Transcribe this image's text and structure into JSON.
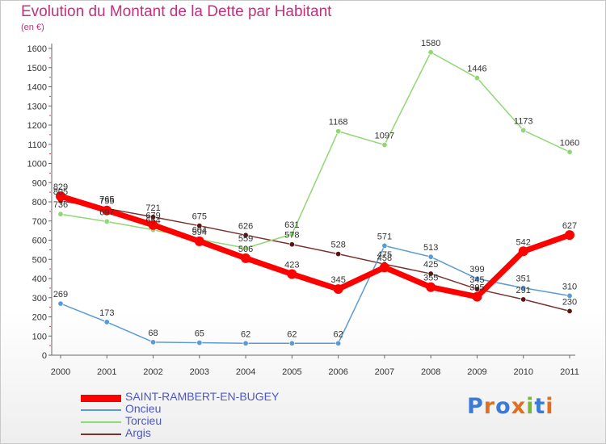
{
  "header": {
    "title": "Evolution du Montant de la Dette par Habitant",
    "unit": "(en €)"
  },
  "logo": {
    "text": "Proxiti"
  },
  "chart_data": {
    "type": "line",
    "title": "Evolution du Montant de la Dette par Habitant",
    "ylabel": "(en €)",
    "xlabel": "",
    "x": [
      "2000",
      "2001",
      "2002",
      "2003",
      "2004",
      "2005",
      "2006",
      "2007",
      "2008",
      "2009",
      "2010",
      "2011"
    ],
    "ylim": [
      0,
      1600
    ],
    "yticks": [
      0,
      100,
      200,
      300,
      400,
      500,
      600,
      700,
      800,
      900,
      1000,
      1100,
      1200,
      1300,
      1400,
      1500,
      1600
    ],
    "grid": false,
    "legend_position": "bottom-left",
    "series": [
      {
        "name": "SAINT-RAMBERT-EN-BUGEY",
        "color": "#ff0000",
        "width": 7,
        "values": [
          829,
          755,
          679,
          594,
          506,
          423,
          345,
          458,
          355,
          305,
          542,
          627
        ],
        "labels": [
          "829",
          "755",
          "679",
          "594",
          "506",
          "423",
          "345",
          "458",
          "355",
          "305",
          "542",
          "627"
        ]
      },
      {
        "name": "Oncieu",
        "color": "#5b9bd5",
        "width": 1.5,
        "values": [
          269,
          173,
          68,
          65,
          62,
          62,
          62,
          571,
          513,
          399,
          351,
          310
        ],
        "labels": [
          "269",
          "173",
          "68",
          "65",
          "62",
          "62",
          "62",
          "571",
          "513",
          "399",
          "351",
          "310"
        ]
      },
      {
        "name": "Torcieu",
        "color": "#8fd873",
        "width": 1.5,
        "values": [
          736,
          697,
          654,
          604,
          559,
          631,
          1168,
          1097,
          1580,
          1446,
          1173,
          1060
        ],
        "labels": [
          "736",
          "697",
          "654",
          "604",
          "559",
          "631",
          "1168",
          "1097",
          "1580",
          "1446",
          "1173",
          "1060"
        ]
      },
      {
        "name": "Argis",
        "color": "#7b3030",
        "width": 1.5,
        "values": [
          805,
          765,
          721,
          675,
          626,
          578,
          528,
          475,
          425,
          345,
          291,
          230
        ],
        "labels": [
          "805",
          "765",
          "721",
          "675",
          "626",
          "578",
          "528",
          "475",
          "425",
          "345",
          "291",
          "230"
        ]
      }
    ]
  }
}
